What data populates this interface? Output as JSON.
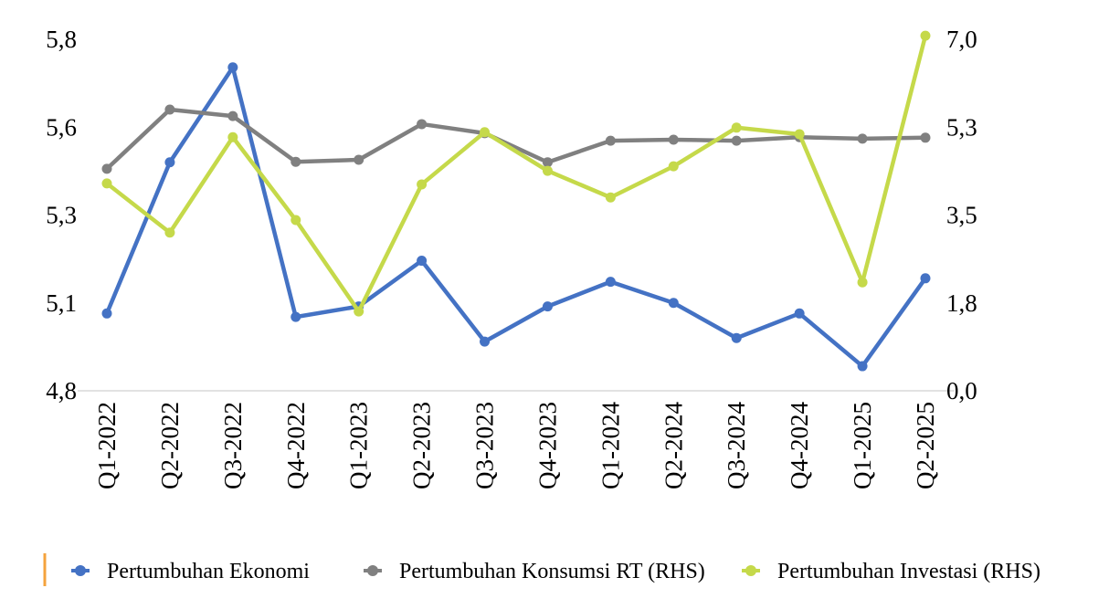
{
  "chart_data": {
    "type": "line",
    "title": "",
    "categories": [
      "Q1-2022",
      "Q2-2022",
      "Q3-2022",
      "Q4-2022",
      "Q1-2023",
      "Q2-2023",
      "Q3-2023",
      "Q4-2023",
      "Q1-2024",
      "Q2-2024",
      "Q3-2024",
      "Q4-2024",
      "Q1-2025",
      "Q2-2025"
    ],
    "y_left": {
      "ylim": [
        4.8,
        5.8
      ],
      "ticks": [
        4.8,
        5.05,
        5.3,
        5.55,
        5.8
      ],
      "tick_labels": [
        "4,8",
        "5,1",
        "5,3",
        "5,6",
        "5,8"
      ]
    },
    "y_right": {
      "ylim": [
        0,
        7.0
      ],
      "ticks": [
        0,
        1.75,
        3.5,
        5.25,
        7.0
      ],
      "tick_labels": [
        "0,0",
        "1,8",
        "3,5",
        "5,3",
        "7,0"
      ]
    },
    "grid": false,
    "legend_position": "bottom",
    "series": [
      {
        "name": "Pertumbuhan Ekonomi",
        "axis": "left",
        "color": "#4472C4",
        "values": [
          5.02,
          5.45,
          5.72,
          5.01,
          5.04,
          5.17,
          4.94,
          5.04,
          5.11,
          5.05,
          4.95,
          5.02,
          4.87,
          5.12
        ]
      },
      {
        "name": "Pertumbuhan Konsumsi RT (RHS)",
        "axis": "right",
        "color": "#808080",
        "values": [
          4.42,
          5.6,
          5.47,
          4.56,
          4.6,
          5.31,
          5.13,
          4.55,
          4.98,
          5.0,
          4.98,
          5.05,
          5.02,
          5.04
        ]
      },
      {
        "name": "Pertumbuhan Investasi (RHS)",
        "axis": "right",
        "color": "#C5D94A",
        "values": [
          4.13,
          3.15,
          5.05,
          3.4,
          1.58,
          4.11,
          5.15,
          4.38,
          3.85,
          4.47,
          5.24,
          5.11,
          2.16,
          7.07
        ]
      }
    ],
    "legend_marker_color": "#F4A33D"
  }
}
